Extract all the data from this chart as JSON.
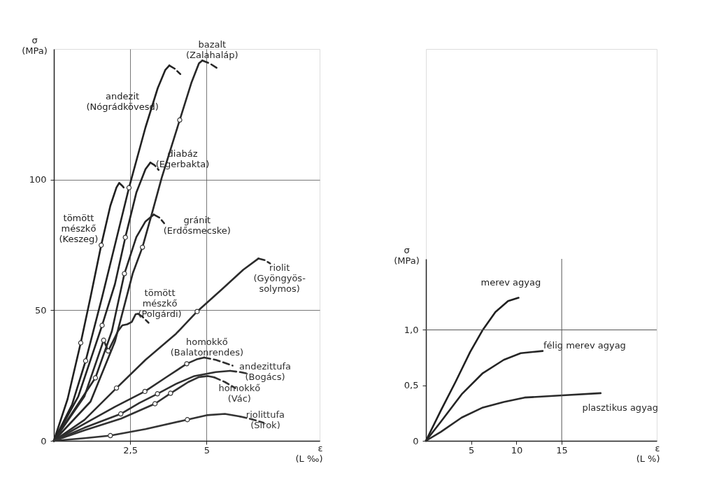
{
  "chart_data": [
    {
      "type": "line",
      "xlabel": "ε\n(L ‰)",
      "ylabel": "σ\n(MPa)",
      "xlim": [
        0,
        8.7
      ],
      "ylim": [
        0,
        150
      ],
      "xticks": [
        {
          "value": 2.5,
          "label": "2,5"
        },
        5
      ],
      "yticks": [
        0,
        50,
        100
      ],
      "grid": true,
      "marker": "none",
      "line_style": "solid",
      "series": [
        {
          "name": "tömött\nmészkő\n(Keszeg)",
          "color": "#202020",
          "x": [
            0,
            0.45,
            0.88,
            1.2,
            1.55,
            1.85,
            2.05,
            2.14
          ],
          "values": [
            0,
            16,
            37.5,
            55,
            74.9,
            90,
            97,
            98.7
          ]
        },
        {
          "color": "#212121",
          "line_style": "dashed",
          "x": [
            2.14,
            2.25,
            2.35
          ],
          "values": [
            98.7,
            97.5,
            96
          ]
        },
        {
          "name": "andezit\n(Nógrádkövesd)",
          "color": "#222222",
          "x": [
            0,
            0.6,
            1.04,
            1.58,
            2.0,
            2.46,
            3.0,
            3.4,
            3.65,
            3.78
          ],
          "values": [
            0,
            14,
            30.6,
            55,
            75,
            96.9,
            120,
            135,
            142,
            143.7
          ]
        },
        {
          "color": "#232323",
          "line_style": "dashed",
          "x": [
            3.78,
            3.95,
            4.14
          ],
          "values": [
            143.7,
            142.5,
            140.4
          ]
        },
        {
          "name": "diabáz\n(Egerbakta)",
          "color": "#242424",
          "x": [
            0,
            0.8,
            1.58,
            2.0,
            2.34,
            2.7,
            3.0,
            3.16
          ],
          "values": [
            0,
            17,
            44.2,
            60,
            77.9,
            95,
            104,
            106.5
          ]
        },
        {
          "color": "#252525",
          "line_style": "dashed",
          "x": [
            3.16,
            3.3,
            3.43
          ],
          "values": [
            106.5,
            105.5,
            103.7
          ]
        },
        {
          "name": "gránit\n(Erdősmecske)",
          "color": "#262626",
          "x": [
            0,
            0.9,
            1.36,
            1.9,
            2.31,
            2.7,
            3.0,
            3.27
          ],
          "values": [
            0,
            16,
            24.1,
            42,
            64,
            78,
            84,
            86.6
          ]
        },
        {
          "color": "#272727",
          "line_style": "dashed",
          "x": [
            3.27,
            3.45,
            3.61
          ],
          "values": [
            86.6,
            85.5,
            83.3
          ]
        },
        {
          "name": "bazalt\n(Zalahaláp)",
          "color": "#282828",
          "x": [
            0,
            1.2,
            2.0,
            2.58,
            2.9,
            3.22,
            3.53,
            4.12,
            4.5,
            4.75,
            4.86
          ],
          "values": [
            0,
            15,
            38,
            64,
            74.1,
            87.4,
            100.7,
            122.8,
            137,
            144.5,
            145.6
          ]
        },
        {
          "color": "#292929",
          "line_style": "dashed",
          "x": [
            4.86,
            5.1,
            5.34
          ],
          "values": [
            145.6,
            144.5,
            142.7
          ]
        },
        {
          "name": "tömött\nmészkő\n(Polgárdi)",
          "color": "#2a2a2a",
          "x": [
            0,
            1.0,
            1.63,
            1.78,
            2.1,
            2.24,
            2.4,
            2.55,
            2.68,
            2.76
          ],
          "values": [
            0,
            17,
            38.5,
            34.4,
            42,
            44.2,
            44.6,
            45.5,
            48.5,
            48.6
          ]
        },
        {
          "color": "#2b2b2b",
          "line_style": "dashed",
          "x": [
            2.76,
            2.9,
            3.1
          ],
          "values": [
            48.6,
            47.5,
            45.2
          ]
        },
        {
          "name": "riolit\n(Gyöngyös-\nsolymos)",
          "color": "#2c2c2c",
          "x": [
            0,
            1.0,
            2.05,
            3.0,
            4.0,
            4.69,
            5.5,
            6.2,
            6.7
          ],
          "values": [
            0,
            8,
            20.2,
            31,
            41,
            49.5,
            58,
            65.5,
            69.8
          ]
        },
        {
          "color": "#2d2d2d",
          "line_style": "dashed",
          "x": [
            6.7,
            6.9,
            7.08
          ],
          "values": [
            69.8,
            69.2,
            67.9
          ]
        },
        {
          "name": "homokkő\n(Balatonrendes)",
          "color": "#2e2e2e",
          "x": [
            0,
            1.0,
            2.0,
            2.98,
            3.7,
            4.35,
            4.7,
            4.92
          ],
          "values": [
            0,
            6.5,
            13,
            18.9,
            24.5,
            29.5,
            31.3,
            31.9
          ]
        },
        {
          "color": "#2f2f2f",
          "line_style": "dashed",
          "x": [
            4.92,
            5.3,
            5.85
          ],
          "values": [
            31.9,
            31.0,
            28.8
          ]
        },
        {
          "name": "andezittufa\n(Bogács)",
          "color": "#303030",
          "x": [
            0,
            1.0,
            2.19,
            2.8,
            3.39,
            4.0,
            4.6,
            5.3,
            5.77
          ],
          "values": [
            0,
            5,
            10.3,
            14.5,
            18.0,
            21.8,
            24.8,
            26.3,
            26.8
          ]
        },
        {
          "color": "#313131",
          "line_style": "dashed",
          "x": [
            5.77,
            6.1,
            6.4
          ],
          "values": [
            26.8,
            26.3,
            25.6
          ]
        },
        {
          "name": "homokkő\n(Vác)",
          "color": "#323232",
          "x": [
            0,
            1.0,
            2.2,
            3.31,
            3.82,
            4.4,
            4.75,
            5.05,
            5.25
          ],
          "values": [
            0,
            4,
            8.5,
            14.2,
            18.2,
            22.5,
            24.4,
            24.8,
            24.3
          ]
        },
        {
          "color": "#333333",
          "line_style": "dashed",
          "x": [
            5.25,
            5.6,
            5.94
          ],
          "values": [
            24.3,
            22.5,
            20.2
          ]
        },
        {
          "name": "riolittufa\n(Sirok)",
          "color": "#343434",
          "x": [
            0,
            1.0,
            1.85,
            3.0,
            4.37,
            5.0,
            5.6,
            6.1
          ],
          "values": [
            0,
            1,
            2.0,
            4.5,
            8.1,
            9.8,
            10.3,
            9.3
          ]
        },
        {
          "color": "#353535",
          "line_style": "dashed",
          "x": [
            6.1,
            6.5,
            6.87
          ],
          "values": [
            9.3,
            8.2,
            6.9
          ]
        },
        {
          "type": "scatter",
          "marker": "circle",
          "color": "#363636",
          "x": [
            0.88,
            1.55,
            1.04,
            2.46,
            1.58,
            2.34,
            1.63,
            1.36,
            2.31,
            1.78,
            2.9,
            4.12,
            2.05,
            4.69,
            2.98,
            4.35,
            2.19,
            3.39,
            3.82,
            3.31,
            1.85,
            4.37
          ],
          "values": [
            37.5,
            74.9,
            30.6,
            96.9,
            44.2,
            77.9,
            38.5,
            24.1,
            64,
            34.4,
            74.1,
            122.8,
            20.2,
            49.5,
            18.9,
            29.5,
            10.3,
            18.0,
            18.2,
            14.2,
            2.0,
            8.1
          ]
        }
      ]
    },
    {
      "type": "line",
      "xlabel": "ε\n(L %)",
      "ylabel": "σ\n(MPa)",
      "xlim": [
        0,
        25.5
      ],
      "ylim": [
        0,
        1.64
      ],
      "xticks": [
        5,
        10,
        15
      ],
      "yticks": [
        0,
        {
          "value": 0.5,
          "label": "0,5"
        },
        {
          "value": 1.0,
          "label": "1,0"
        }
      ],
      "grid": false,
      "marker": "none",
      "line_style": "solid",
      "ref_lines": [
        {
          "axis": "y",
          "value": 1.0
        },
        {
          "axis": "x",
          "value": 15
        }
      ],
      "series": [
        {
          "name": "merev agyag",
          "color": "#202020",
          "x": [
            0,
            1.63,
            3.26,
            4.88,
            6.28,
            7.67,
            9.07,
            10.23
          ],
          "values": [
            0,
            0.27,
            0.53,
            0.8,
            1.0,
            1.16,
            1.26,
            1.29
          ]
        },
        {
          "name": "félig merev agyag",
          "color": "#252525",
          "x": [
            0,
            1.63,
            3.95,
            6.28,
            8.6,
            10.47,
            12.9
          ],
          "values": [
            0,
            0.17,
            0.42,
            0.61,
            0.73,
            0.79,
            0.81
          ]
        },
        {
          "name": "plasztikus agyag",
          "color": "#2a2a2a",
          "x": [
            0,
            1.63,
            3.95,
            6.28,
            8.6,
            10.9,
            15.1,
            19.3
          ],
          "values": [
            0,
            0.08,
            0.21,
            0.3,
            0.35,
            0.39,
            0.41,
            0.43
          ]
        }
      ]
    }
  ]
}
